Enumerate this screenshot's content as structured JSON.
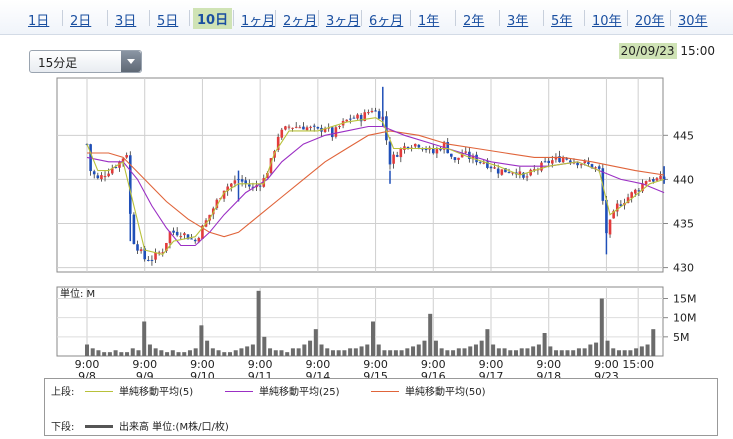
{
  "tabs": [
    {
      "label": "1日"
    },
    {
      "label": "2日"
    },
    {
      "label": "3日"
    },
    {
      "label": "5日"
    },
    {
      "label": "10日",
      "active": true
    },
    {
      "label": "1ヶ月"
    },
    {
      "label": "2ヶ月"
    },
    {
      "label": "3ヶ月"
    },
    {
      "label": "6ヶ月"
    },
    {
      "label": "1年"
    },
    {
      "label": "2年"
    },
    {
      "label": "3年"
    },
    {
      "label": "5年"
    },
    {
      "label": "10年"
    },
    {
      "label": "20年"
    },
    {
      "label": "30年"
    }
  ],
  "interval_select": {
    "value": "15分足"
  },
  "datetime": {
    "date": "20/09/23",
    "time": "15:00"
  },
  "chart_data": {
    "type": "candlestick",
    "price_axis": {
      "ticks": [
        430,
        435,
        440,
        445
      ],
      "range": [
        429.5,
        451.5
      ]
    },
    "volume_axis": {
      "label": "単位: M",
      "ticks": [
        "5M",
        "10M",
        "15M"
      ],
      "tick_values": [
        5,
        10,
        15
      ],
      "range": [
        0,
        18
      ]
    },
    "x_ticks": [
      {
        "time": "9:00",
        "date": "9/8"
      },
      {
        "time": "9:00",
        "date": "9/9"
      },
      {
        "time": "9:00",
        "date": "9/10"
      },
      {
        "time": "9:00",
        "date": "9/11"
      },
      {
        "time": "9:00",
        "date": "9/14"
      },
      {
        "time": "9:00",
        "date": "9/15"
      },
      {
        "time": "9:00",
        "date": "9/16"
      },
      {
        "time": "9:00",
        "date": "9/17"
      },
      {
        "time": "9:00",
        "date": "9/18"
      },
      {
        "time": "9:00",
        "date": "9/23"
      },
      {
        "time": "15:00",
        "date": ""
      }
    ],
    "close_path": [
      [
        0,
        444
      ],
      [
        0.5,
        441
      ],
      [
        1.5,
        440
      ],
      [
        3,
        441
      ],
      [
        4.5,
        442
      ],
      [
        5.5,
        443
      ],
      [
        6,
        436
      ],
      [
        6.5,
        433
      ],
      [
        8,
        431
      ],
      [
        9,
        431
      ],
      [
        10.5,
        432
      ],
      [
        11.5,
        434
      ],
      [
        13,
        434
      ],
      [
        15,
        433
      ],
      [
        17,
        436
      ],
      [
        19,
        439
      ],
      [
        21,
        440
      ],
      [
        23,
        439
      ],
      [
        24.5,
        440
      ],
      [
        25.5,
        442
      ],
      [
        26.5,
        445
      ],
      [
        28,
        446
      ],
      [
        30,
        446
      ],
      [
        32,
        445.5
      ],
      [
        33,
        446
      ],
      [
        34,
        445
      ],
      [
        35,
        446
      ],
      [
        36.5,
        447
      ],
      [
        38,
        447
      ],
      [
        39.5,
        448
      ],
      [
        41,
        447
      ],
      [
        42,
        442
      ],
      [
        43,
        443
      ],
      [
        44.5,
        444
      ],
      [
        46,
        444
      ],
      [
        48,
        443
      ],
      [
        49.5,
        444
      ],
      [
        51,
        442
      ],
      [
        52,
        443
      ],
      [
        53,
        442.5
      ],
      [
        55,
        442
      ],
      [
        57,
        441
      ],
      [
        58.5,
        441
      ],
      [
        59.5,
        441
      ],
      [
        60.5,
        440
      ],
      [
        62,
        441
      ],
      [
        64,
        442
      ],
      [
        66,
        442.5
      ],
      [
        68,
        442
      ],
      [
        70,
        441.5
      ],
      [
        71,
        441
      ],
      [
        72,
        434
      ],
      [
        72.5,
        435
      ],
      [
        73.5,
        437
      ],
      [
        75,
        438
      ],
      [
        76.5,
        439
      ],
      [
        77.5,
        440
      ],
      [
        79,
        440
      ],
      [
        80,
        440
      ]
    ],
    "volume": [
      3,
      2,
      1.5,
      1,
      1,
      1.5,
      1,
      1,
      2,
      1.5,
      9,
      3,
      2,
      1.5,
      1,
      1.5,
      1,
      1,
      1.5,
      2,
      8,
      4,
      2,
      1.5,
      1,
      1,
      1.5,
      2,
      2.5,
      3,
      17,
      5,
      2,
      1.5,
      1.5,
      1,
      2,
      2,
      3,
      4,
      7,
      3,
      2,
      1.5,
      1.5,
      1.5,
      2,
      2,
      2.5,
      3,
      9,
      3,
      1.5,
      1.5,
      1.5,
      1.5,
      2,
      2.5,
      3,
      4,
      11,
      4,
      2,
      1.5,
      1.5,
      2,
      2,
      2.5,
      3,
      4,
      7,
      3,
      2,
      2,
      1.5,
      1.5,
      2,
      2,
      2.5,
      3,
      6,
      2.5,
      1.5,
      1.5,
      1.5,
      1.5,
      2,
      2,
      3,
      3.5,
      15,
      4,
      2,
      1.5,
      1.5,
      1.5,
      2,
      2.5,
      3,
      7
    ],
    "series": [
      {
        "name": "単純移動平均(5)",
        "color": "#b8c13a"
      },
      {
        "name": "単純移動平均(25)",
        "color": "#9b2fc4"
      },
      {
        "name": "単純移動平均(50)",
        "color": "#e0643a"
      }
    ],
    "ma5": [
      [
        0,
        444
      ],
      [
        1.5,
        441
      ],
      [
        3,
        441
      ],
      [
        5,
        442
      ],
      [
        6.5,
        437
      ],
      [
        8,
        432
      ],
      [
        10.5,
        431.5
      ],
      [
        12,
        433
      ],
      [
        15,
        433.5
      ],
      [
        17,
        435.5
      ],
      [
        19,
        438.5
      ],
      [
        21,
        439.5
      ],
      [
        24.5,
        439.5
      ],
      [
        26,
        443
      ],
      [
        28,
        445.5
      ],
      [
        32,
        445.5
      ],
      [
        36,
        446.5
      ],
      [
        40,
        447
      ],
      [
        41,
        446.5
      ],
      [
        42.5,
        443.5
      ],
      [
        46,
        443.5
      ],
      [
        50,
        443.5
      ],
      [
        53,
        442.5
      ],
      [
        57,
        441.5
      ],
      [
        60,
        440.5
      ],
      [
        64,
        441.5
      ],
      [
        68,
        442
      ],
      [
        71,
        441
      ],
      [
        72.5,
        436
      ],
      [
        75,
        437.5
      ],
      [
        78,
        439.5
      ],
      [
        80,
        440
      ]
    ],
    "ma25": [
      [
        0,
        442.5
      ],
      [
        3,
        442
      ],
      [
        5,
        442
      ],
      [
        7,
        440
      ],
      [
        9,
        437
      ],
      [
        11,
        434.5
      ],
      [
        13,
        432.5
      ],
      [
        15,
        432.5
      ],
      [
        17,
        434
      ],
      [
        19,
        436
      ],
      [
        22,
        438.5
      ],
      [
        25,
        440
      ],
      [
        27,
        442
      ],
      [
        30,
        444
      ],
      [
        33,
        445
      ],
      [
        36,
        445.5
      ],
      [
        39,
        446
      ],
      [
        41,
        446
      ],
      [
        44,
        445
      ],
      [
        48,
        444
      ],
      [
        52,
        443
      ],
      [
        56,
        442
      ],
      [
        60,
        441.5
      ],
      [
        64,
        441.5
      ],
      [
        68,
        442
      ],
      [
        71,
        441
      ],
      [
        74,
        440
      ],
      [
        77,
        439.5
      ],
      [
        80,
        438.5
      ]
    ],
    "ma50": [
      [
        0,
        443
      ],
      [
        3,
        443
      ],
      [
        5,
        442.5
      ],
      [
        8,
        440
      ],
      [
        11,
        437.5
      ],
      [
        14,
        435.5
      ],
      [
        17,
        434
      ],
      [
        19,
        433.5
      ],
      [
        21,
        434
      ],
      [
        24,
        436
      ],
      [
        27,
        438
      ],
      [
        30,
        440
      ],
      [
        33,
        442
      ],
      [
        36,
        443.5
      ],
      [
        39,
        445
      ],
      [
        42,
        445.5
      ],
      [
        46,
        445
      ],
      [
        50,
        444
      ],
      [
        54,
        443.5
      ],
      [
        58,
        443
      ],
      [
        62,
        442.5
      ],
      [
        66,
        442.5
      ],
      [
        70,
        442
      ],
      [
        73,
        441.5
      ],
      [
        76,
        441
      ],
      [
        80,
        440.5
      ]
    ]
  },
  "legend": {
    "upper_label": "上段:",
    "lower_label": "下段:",
    "volume_item": "出来高 単位:(M株/口/枚)",
    "volume_color": "#555555"
  }
}
